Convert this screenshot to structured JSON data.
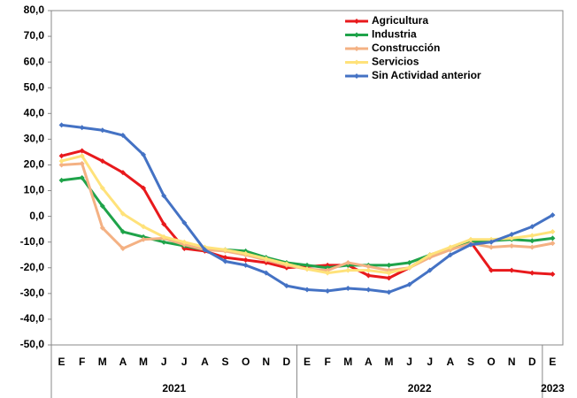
{
  "chart_data": {
    "type": "line",
    "categories": [
      "E",
      "F",
      "M",
      "A",
      "M",
      "J",
      "J",
      "A",
      "S",
      "O",
      "N",
      "D",
      "E",
      "F",
      "M",
      "A",
      "M",
      "J",
      "J",
      "A",
      "S",
      "O",
      "N",
      "D",
      "E"
    ],
    "x_groups": [
      "2021",
      "2022",
      "2023"
    ],
    "series": [
      {
        "name": "Agricultura",
        "color": "#e8191c",
        "values": [
          23.5,
          25.5,
          21.5,
          17,
          11,
          -3,
          -12.5,
          -13.5,
          -16,
          -17,
          -18,
          -20,
          -19.5,
          -19,
          -19,
          -23,
          -24,
          -20,
          -15,
          -12.5,
          -10,
          -21,
          -21,
          -22,
          -22.5
        ]
      },
      {
        "name": "Industria",
        "color": "#1fa34a",
        "values": [
          14,
          15,
          4,
          -6,
          -8,
          -10,
          -11.5,
          -13,
          -13,
          -13.5,
          -16,
          -18,
          -19,
          -20,
          -19,
          -19,
          -19,
          -18,
          -15,
          -13,
          -10,
          -9.5,
          -9,
          -9.5,
          -8.5
        ]
      },
      {
        "name": "Construcción",
        "color": "#f4b183",
        "values": [
          20,
          20.5,
          -4.5,
          -12.5,
          -9,
          -8.5,
          -11,
          -13,
          -13.5,
          -15,
          -17,
          -19,
          -20.5,
          -21,
          -18,
          -19.5,
          -21,
          -20,
          -16,
          -13,
          -10.5,
          -12,
          -11.5,
          -12,
          -10.5
        ]
      },
      {
        "name": "Servicios",
        "color": "#ffe27a",
        "values": [
          21.5,
          23.5,
          11,
          1,
          -4,
          -8,
          -10,
          -12,
          -13,
          -14.5,
          -16.5,
          -18.5,
          -20.5,
          -22,
          -21,
          -21,
          -22,
          -20,
          -15,
          -12,
          -9,
          -9,
          -8.5,
          -7.5,
          -6
        ]
      },
      {
        "name": "Sin Actividad anterior",
        "color": "#4472c4",
        "values": [
          35.5,
          34.5,
          33.5,
          31.5,
          24,
          8,
          -2.5,
          -13,
          -17.5,
          -19,
          -22,
          -27,
          -28.5,
          -29,
          -28,
          -28.5,
          -29.5,
          -26.5,
          -21,
          -15,
          -11,
          -10,
          -7,
          -4,
          0.5
        ]
      }
    ],
    "ylim": [
      -50,
      80
    ],
    "yticks": [
      {
        "value": -50,
        "label": "-50,0"
      },
      {
        "value": -40,
        "label": "-40,0"
      },
      {
        "value": -30,
        "label": "-30,0"
      },
      {
        "value": -20,
        "label": "-20,0"
      },
      {
        "value": -10,
        "label": "-10,0"
      },
      {
        "value": 0,
        "label": "0,0"
      },
      {
        "value": 10,
        "label": "10,0"
      },
      {
        "value": 20,
        "label": "20,0"
      },
      {
        "value": 30,
        "label": "30,0"
      },
      {
        "value": 40,
        "label": "40,0"
      },
      {
        "value": 50,
        "label": "50,0"
      },
      {
        "value": 60,
        "label": "60,0"
      },
      {
        "value": 70,
        "label": "70,0"
      },
      {
        "value": 80,
        "label": "80,0"
      }
    ],
    "grid": false,
    "legend": "upper right"
  }
}
